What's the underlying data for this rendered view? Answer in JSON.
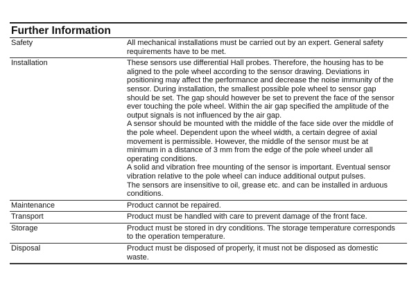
{
  "title": "Further Information",
  "rows": [
    {
      "label": "Safety",
      "lines": [
        "All mechanical installations must be carried out by an expert. General safety",
        "requirements have to be met."
      ]
    },
    {
      "label": "Installation",
      "lines": [
        "These sensors use differential Hall probes. Therefore, the housing has to be",
        "aligned to the pole wheel according to the sensor drawing. Deviations in",
        "positioning may affect the performance and decrease the noise immunity of the",
        "sensor. During installation, the smallest possible pole wheel to sensor gap",
        "should be set. The gap should however be set to prevent the face of the sensor",
        "ever touching the pole wheel. Within the air gap specified the amplitude of the",
        "output signals is not influenced by the air gap.",
        "A sensor should be mounted with the middle of the face side over the middle of",
        "the pole wheel. Dependent upon the wheel width, a certain degree of axial",
        "movement is permissible. However, the middle of the sensor must be at",
        "minimum in a distance of 3 mm from the edge of the pole wheel under all",
        "operating conditions.",
        "A solid and vibration free mounting of the sensor is important. Eventual sensor",
        "vibration relative to the pole wheel can induce additional output pulses.",
        "The sensors are insensitive to oil, grease etc. and can be installed in arduous",
        "conditions."
      ]
    },
    {
      "label": "Maintenance",
      "lines": [
        "Product cannot be repaired."
      ]
    },
    {
      "label": "Transport",
      "lines": [
        "Product must be handled with care to prevent damage of the front face."
      ]
    },
    {
      "label": "Storage",
      "lines": [
        "Product must be stored in dry conditions. The storage temperature corresponds",
        "to the operation temperature."
      ]
    },
    {
      "label": "Disposal",
      "lines": [
        "Product must be disposed of properly, it must not be disposed as domestic",
        "waste."
      ]
    }
  ]
}
